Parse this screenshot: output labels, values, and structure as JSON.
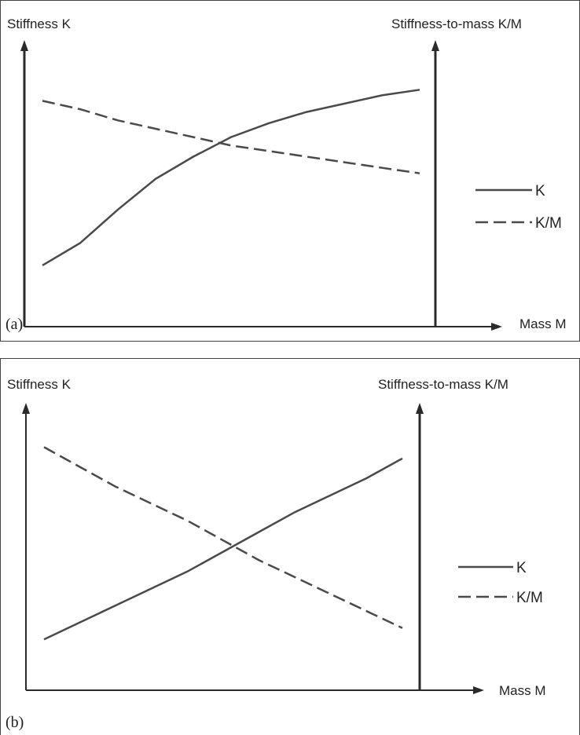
{
  "chart_data": [
    {
      "type": "line",
      "panel_label": "(a)",
      "ylabel_left": "Stiffness K",
      "ylabel_right": "Stiffness-to-mass K/M",
      "xlabel": "Mass M",
      "x": [
        1,
        2,
        3,
        4,
        5,
        6,
        7,
        8,
        9,
        10,
        11
      ],
      "series": [
        {
          "name": "K",
          "style": "solid",
          "values": [
            0.22,
            0.3,
            0.42,
            0.53,
            0.61,
            0.68,
            0.73,
            0.77,
            0.8,
            0.83,
            0.85
          ]
        },
        {
          "name": "K/M",
          "style": "dashed",
          "values": [
            0.81,
            0.78,
            0.74,
            0.71,
            0.68,
            0.65,
            0.63,
            0.61,
            0.59,
            0.57,
            0.55
          ]
        }
      ],
      "legend": [
        "K",
        "K/M"
      ],
      "legend_position": "right",
      "grid": false
    },
    {
      "type": "line",
      "panel_label": "(b)",
      "ylabel_left": "Stiffness K",
      "ylabel_right": "Stiffness-to-mass K/M",
      "xlabel": "Mass M",
      "x": [
        1,
        2,
        3,
        4,
        5,
        6,
        7,
        8,
        9,
        10,
        11
      ],
      "series": [
        {
          "name": "K",
          "style": "solid",
          "values": [
            0.18,
            0.24,
            0.3,
            0.36,
            0.42,
            0.49,
            0.56,
            0.63,
            0.69,
            0.75,
            0.82
          ]
        },
        {
          "name": "K/M",
          "style": "dashed",
          "values": [
            0.86,
            0.79,
            0.72,
            0.66,
            0.6,
            0.53,
            0.46,
            0.4,
            0.34,
            0.28,
            0.22
          ]
        }
      ],
      "legend": [
        "K",
        "K/M"
      ],
      "legend_position": "right",
      "grid": false
    }
  ]
}
